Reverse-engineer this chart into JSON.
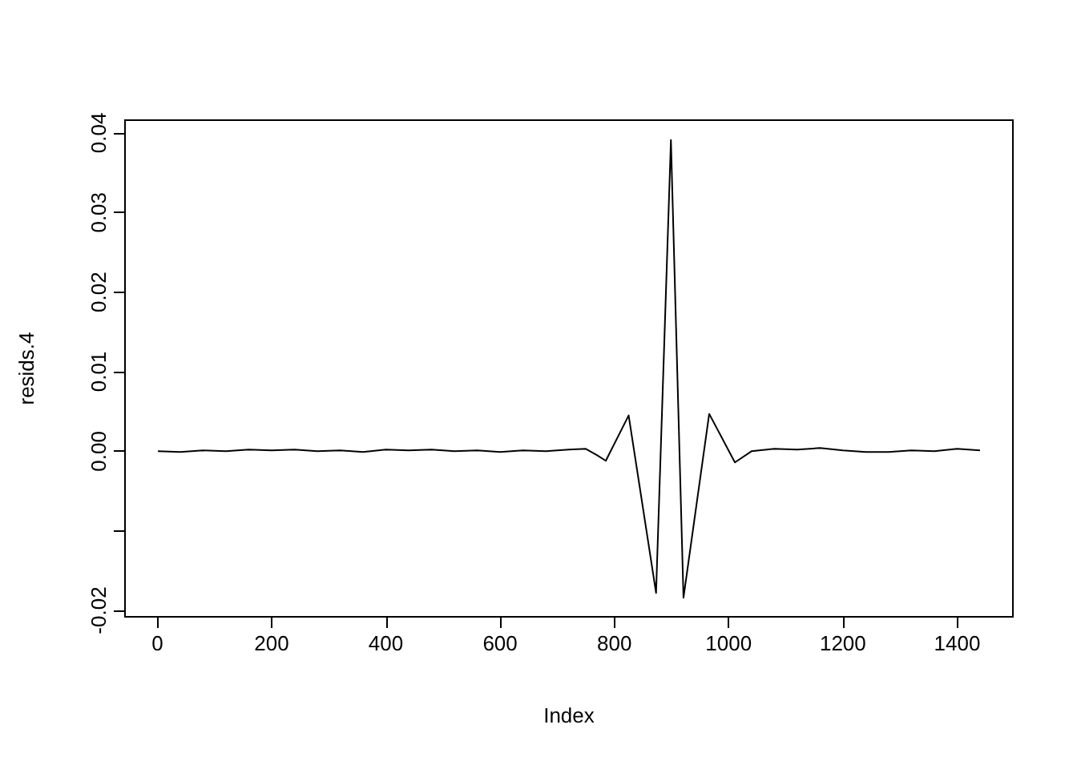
{
  "chart_data": {
    "type": "line",
    "xlabel": "Index",
    "ylabel": "resids.4",
    "x": [
      1,
      40,
      80,
      120,
      160,
      200,
      240,
      280,
      320,
      360,
      400,
      440,
      480,
      520,
      560,
      600,
      640,
      680,
      720,
      750,
      770,
      785,
      825,
      873,
      899,
      921,
      966,
      1011,
      1040,
      1080,
      1120,
      1160,
      1200,
      1240,
      1280,
      1320,
      1360,
      1400,
      1440
    ],
    "series": [
      {
        "color": "#000000",
        "values": [
          0,
          -0.0001,
          0.0001,
          0,
          0.0002,
          0.0001,
          0.0002,
          0,
          0.0001,
          -0.0001,
          0.0002,
          0.0001,
          0.0002,
          0,
          0.0001,
          -0.0001,
          0.0001,
          0,
          0.0002,
          0.0003,
          -0.0005,
          -0.0012,
          0.0045,
          -0.0178,
          0.0391,
          -0.0184,
          0.0047,
          -0.0014,
          0,
          0.0003,
          0.0002,
          0.0004,
          0.0001,
          -0.0001,
          -0.0001,
          0.0001,
          0,
          0.0003,
          0.0001
        ]
      }
    ],
    "xlim": [
      -56.6,
      1497.6
    ],
    "ylim": [
      -0.0208,
      0.0416
    ],
    "xticks": [
      0,
      200,
      400,
      600,
      800,
      1000,
      1200,
      1400
    ],
    "yticks": [
      -0.02,
      {
        "value": -0.01,
        "label": null
      },
      {
        "value": 0,
        "label": "0.00"
      },
      0.01,
      0.02,
      0.03,
      0.04
    ],
    "marker": "none",
    "line_style": "solid"
  }
}
